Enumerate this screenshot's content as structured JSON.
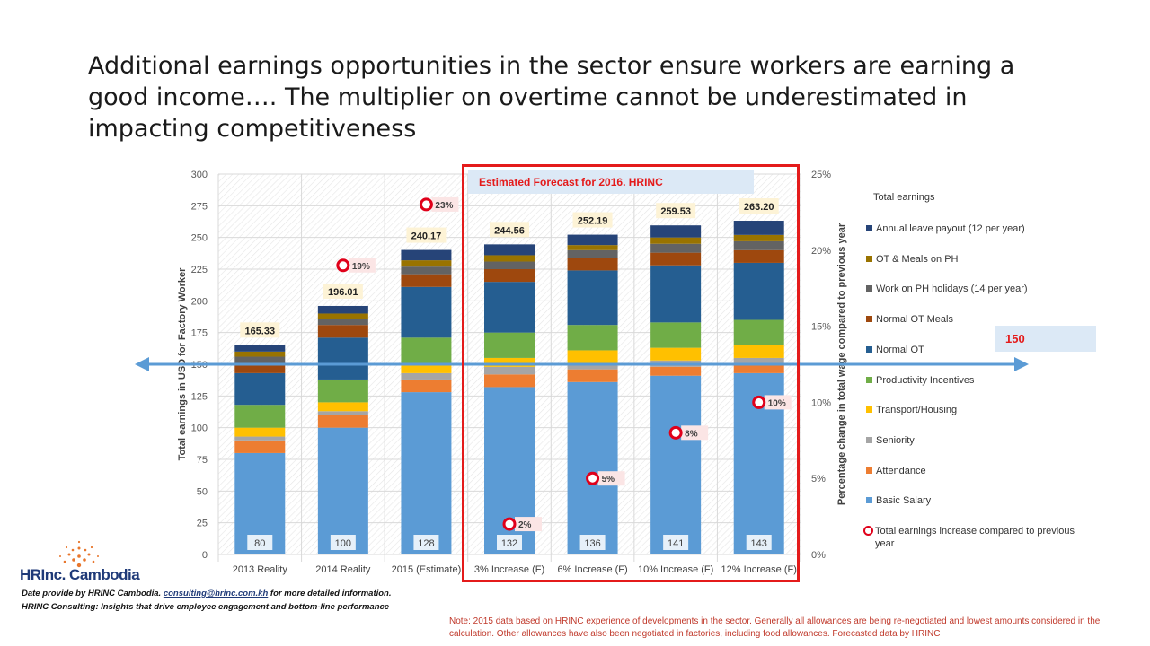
{
  "title": "Additional earnings opportunities in the sector ensure workers are earning a good income…. The multiplier on overtime cannot be underestimated in impacting competitiveness",
  "forecast_label": "Estimated Forecast for 2016. HRINC",
  "callout_150": "150",
  "legend_title": "Total earnings",
  "logo": {
    "brand": "HRInc. Cambodia"
  },
  "footer": {
    "line1_prefix": "Date provide by HRINC Cambodia.",
    "email": "consulting@hrinc.com.kh",
    "line1_suffix": "for more detailed information.",
    "line2": "HRINC Consulting: Insights that drive employee engagement and bottom-line performance"
  },
  "note": "Note: 2015 data based on HRINC experience of developments in the sector. Generally all allowances are being re-negotiated and lowest amounts considered in the calculation. Other allowances have also been negotiated in factories, including food allowances. Forecasted data by HRINC",
  "colors": {
    "basic": "#5b9bd5",
    "attendance": "#ed7d31",
    "seniority": "#a5a5a5",
    "transport": "#ffc000",
    "productivity": "#70ad47",
    "normal_ot": "#255e91",
    "ot_meals": "#9e480e",
    "work_ph": "#636363",
    "ot_meals_ph": "#997300",
    "annual_leave": "#264478",
    "ring": "#e0001a",
    "arrow": "#5b9bd5"
  },
  "chart_data": {
    "type": "bar",
    "stacked": true,
    "categories": [
      "2013 Reality",
      "2014 Reality",
      "2015 (Estimate)",
      "3% Increase (F)",
      "6% Increase (F)",
      "10% Increase (F)",
      "12% Increase (F)"
    ],
    "ylabel": "Total earnings in USD for Factory Worker",
    "y2label": "Percentage change in total wage compared to previous year",
    "ylim": [
      0,
      300
    ],
    "yticks": [
      "0",
      "25",
      "50",
      "75",
      "100",
      "125",
      "150",
      "175",
      "200",
      "225",
      "250",
      "275",
      "300"
    ],
    "y2lim": [
      0,
      25
    ],
    "y2ticks": [
      "0%",
      "5%",
      "10%",
      "15%",
      "20%",
      "25%"
    ],
    "series": [
      {
        "name": "Basic Salary",
        "color_key": "basic",
        "values": [
          80,
          100,
          128,
          132,
          136,
          141,
          143
        ]
      },
      {
        "name": "Attendance",
        "color_key": "attendance",
        "values": [
          10,
          10,
          10,
          10,
          10,
          7,
          7
        ]
      },
      {
        "name": "Seniority",
        "color_key": "seniority",
        "values": [
          3,
          3,
          5,
          6,
          5,
          5,
          5
        ]
      },
      {
        "name": "Transport/Housing",
        "color_key": "transport",
        "values": [
          7,
          7,
          7,
          7,
          10,
          10,
          10
        ]
      },
      {
        "name": "Productivity Incentives",
        "color_key": "productivity",
        "values": [
          18,
          18,
          21,
          20,
          20,
          20,
          20
        ]
      },
      {
        "name": "Normal OT",
        "color_key": "normal_ot",
        "values": [
          25,
          33,
          40,
          40,
          43,
          45,
          45
        ]
      },
      {
        "name": "Normal OT Meals",
        "color_key": "ot_meals",
        "values": [
          8,
          10,
          10,
          10,
          10,
          10,
          10
        ]
      },
      {
        "name": "Work on PH holidays (14 per year)",
        "color_key": "work_ph",
        "values": [
          5,
          5,
          6,
          6,
          6,
          7,
          7
        ]
      },
      {
        "name": "OT & Meals on PH",
        "color_key": "ot_meals_ph",
        "values": [
          4,
          4,
          5,
          5,
          4,
          5,
          5
        ]
      },
      {
        "name": "Annual leave payout (12 per year)",
        "color_key": "annual_leave",
        "values": [
          5.33,
          6.01,
          8.17,
          8.56,
          8.19,
          9.53,
          11.2
        ]
      }
    ],
    "base_labels": [
      "80",
      "100",
      "128",
      "132",
      "136",
      "141",
      "143"
    ],
    "total_labels": [
      "165.33",
      "196.01",
      "240.17",
      "244.56",
      "252.19",
      "259.53",
      "263.20"
    ],
    "increase": {
      "name": "Total earnings increase compared to previous year",
      "values": [
        null,
        19,
        23,
        2,
        5,
        8,
        10
      ],
      "labels": [
        "",
        "19%",
        "23%",
        "2%",
        "5%",
        "8%",
        "10%"
      ]
    },
    "reference_line": 150,
    "legend_placement": "right",
    "grid": true
  }
}
